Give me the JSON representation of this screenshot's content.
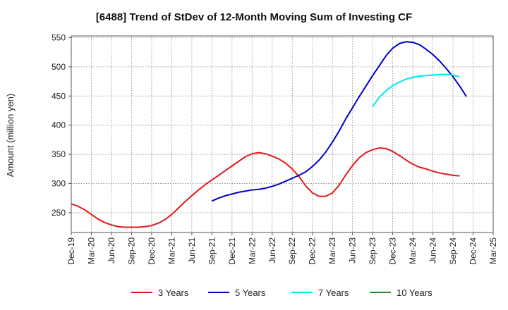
{
  "chart_data": {
    "type": "line",
    "title": "[6488]  Trend of StDev of 12-Month Moving Sum of Investing CF",
    "ylabel": "Amount (million yen)",
    "xlabel": "",
    "ylim": [
      216,
      553
    ],
    "yticks": [
      250,
      300,
      350,
      400,
      450,
      500,
      550
    ],
    "x_tick_labels": [
      "Dec-19",
      "Mar-20",
      "Jun-20",
      "Sep-20",
      "Dec-20",
      "Mar-21",
      "Jun-21",
      "Sep-21",
      "Dec-21",
      "Mar-22",
      "Jun-22",
      "Sep-22",
      "Dec-22",
      "Mar-23",
      "Jun-23",
      "Sep-23",
      "Dec-23",
      "Mar-24",
      "Jun-24",
      "Sep-24",
      "Dec-24",
      "Mar-25"
    ],
    "grid": true,
    "legend_position": "bottom",
    "series": [
      {
        "name": "3 Years",
        "color": "#e31a1c",
        "start_index": 0,
        "values": [
          265,
          261,
          255,
          247,
          239,
          233,
          229,
          226,
          225,
          225,
          225,
          226,
          228,
          232,
          238,
          247,
          258,
          269,
          279,
          289,
          298,
          306,
          314,
          322,
          330,
          338,
          346,
          351,
          353,
          351,
          347,
          342,
          335,
          325,
          312,
          296,
          284,
          278,
          278,
          284,
          297,
          315,
          331,
          344,
          353,
          358,
          361,
          360,
          355,
          348,
          340,
          333,
          328,
          325,
          321,
          318,
          316,
          314,
          313
        ]
      },
      {
        "name": "5 Years",
        "color": "#0000cd",
        "start_index": 21,
        "values": [
          270,
          275,
          279,
          282,
          285,
          287,
          289,
          290,
          292,
          295,
          299,
          304,
          309,
          314,
          320,
          329,
          340,
          354,
          371,
          390,
          411,
          430,
          449,
          467,
          485,
          502,
          519,
          532,
          540,
          543,
          542,
          538,
          530,
          521,
          510,
          497,
          483,
          467,
          449
        ]
      },
      {
        "name": "7 Years",
        "color": "#00e5ee",
        "start_index": 45,
        "values": [
          432,
          448,
          459,
          468,
          474,
          479,
          482,
          484,
          485,
          486,
          487,
          487,
          486,
          483
        ]
      },
      {
        "name": "10 Years",
        "color": "#228b22",
        "start_index": 0,
        "values": []
      }
    ]
  }
}
